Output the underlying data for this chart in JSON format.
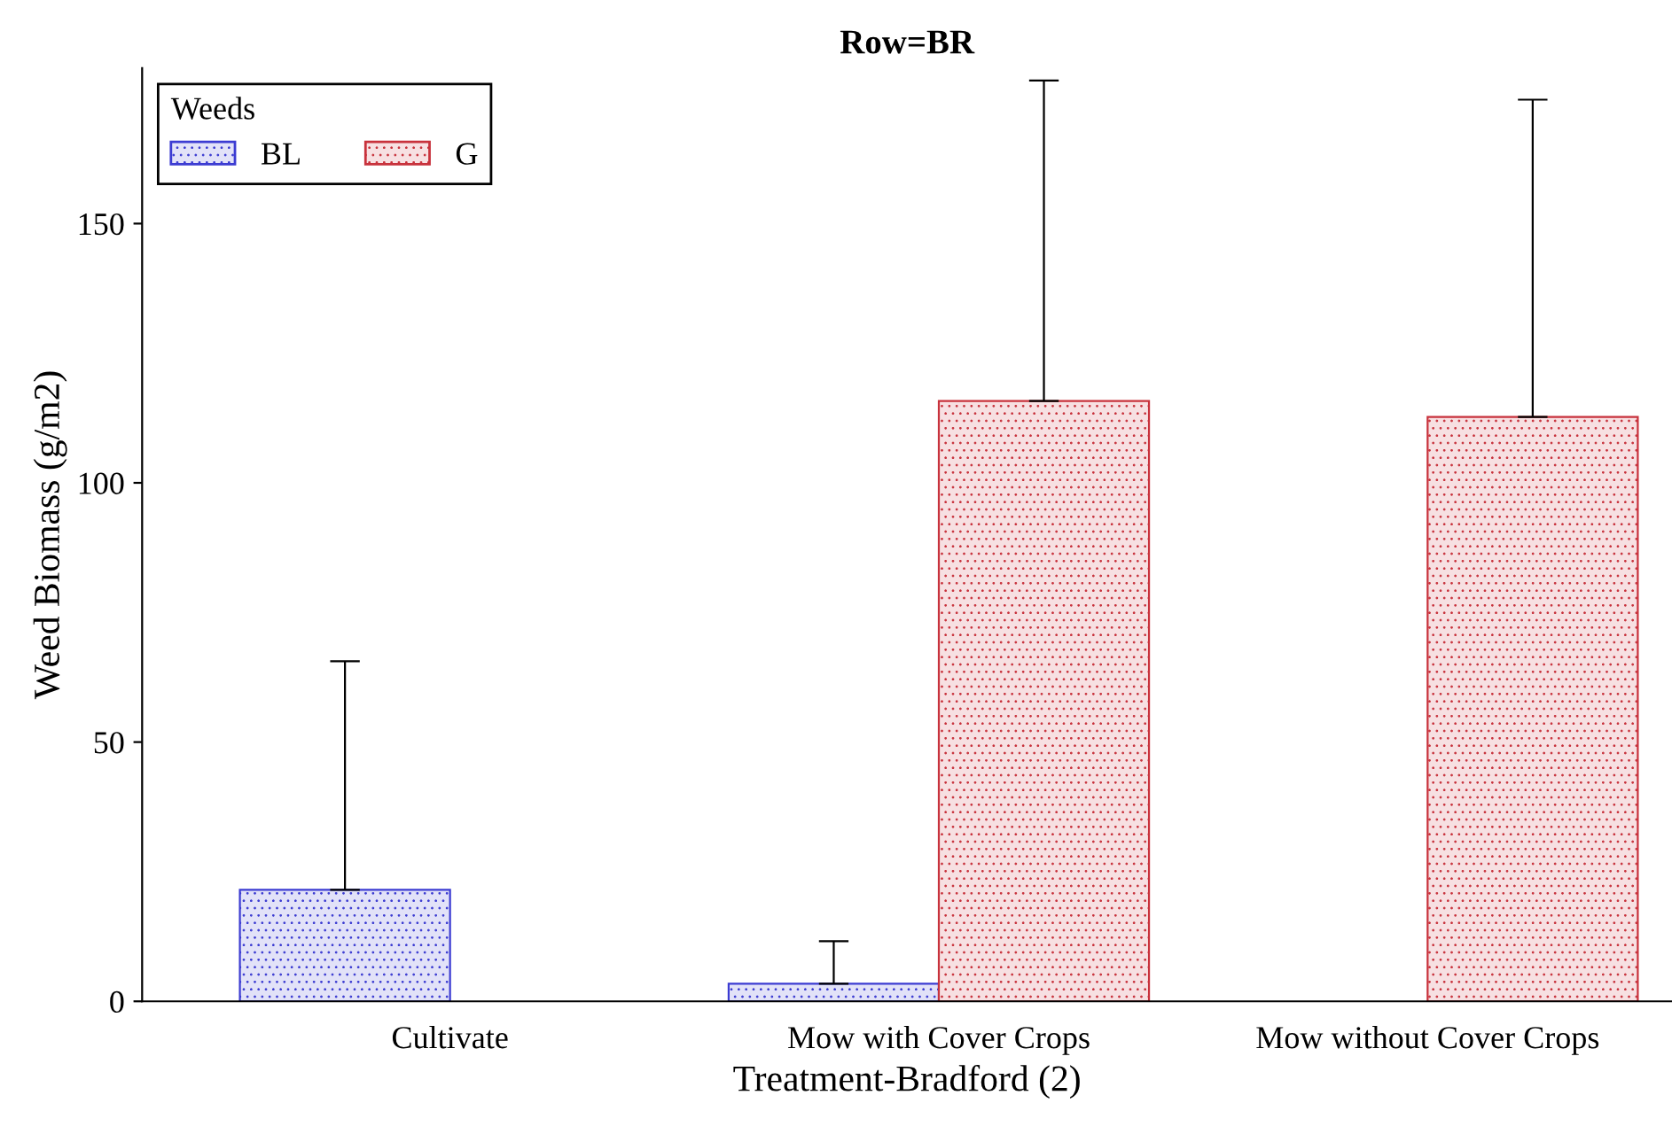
{
  "chart_data": {
    "type": "bar",
    "title": "Row=BR",
    "xlabel": "Treatment-Bradford (2)",
    "ylabel": "Weed Biomass (g/m2)",
    "legend_title": "Weeds",
    "categories": [
      "Cultivate",
      "Mow with Cover Crops",
      "Mow without Cover Crops"
    ],
    "series": [
      {
        "name": "BL",
        "color": "#3c3cd2",
        "values": [
          21.5,
          3.4,
          null
        ],
        "errors": [
          [
            21.5,
            65.6
          ],
          [
            3.4,
            11.6
          ],
          null
        ]
      },
      {
        "name": "G",
        "color": "#c8323c",
        "values": [
          null,
          115.8,
          112.7
        ],
        "errors": [
          null,
          [
            115.8,
            177.6
          ],
          [
            112.7,
            173.9
          ]
        ]
      }
    ],
    "ylim": [
      0,
      180
    ],
    "yticks": [
      0,
      50,
      100,
      150
    ],
    "grid": false,
    "legend": "top left"
  }
}
